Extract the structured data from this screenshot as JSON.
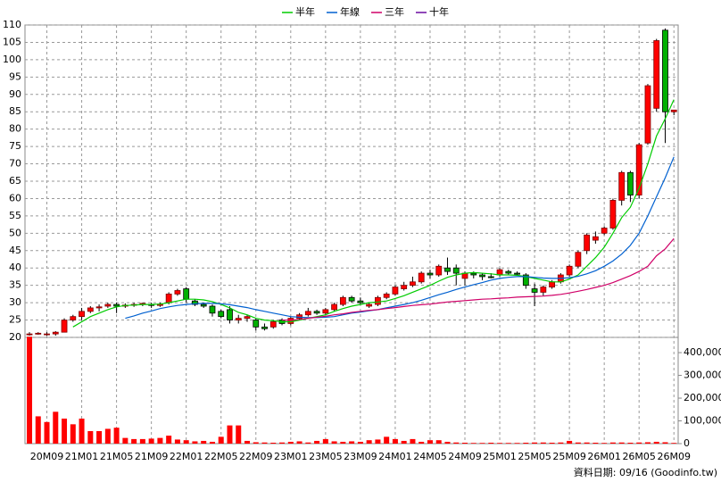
{
  "chart_data": {
    "type": "candlestick",
    "categories": [
      null,
      null,
      "20M09",
      null,
      null,
      null,
      "21M01",
      null,
      null,
      null,
      "21M05",
      null,
      null,
      null,
      "21M09",
      null,
      null,
      null,
      "22M01",
      null,
      null,
      null,
      "22M05",
      null,
      null,
      null,
      "22M09",
      null,
      null,
      null,
      "23M01",
      null,
      null,
      null,
      "23M05",
      null,
      null,
      null,
      "23M09",
      null,
      null,
      null,
      "24M01",
      null,
      null,
      null,
      "24M05",
      null,
      null,
      null,
      "24M09",
      null,
      null,
      null,
      "25M01",
      null,
      null,
      null,
      "25M05",
      null,
      null,
      null,
      "25M09",
      null,
      null,
      null,
      "26M01",
      null,
      null,
      null,
      "26M05",
      null,
      null,
      null,
      "26M09"
    ],
    "ohlc": {
      "open": [
        21,
        21,
        21,
        21,
        21.5,
        25,
        26,
        27.5,
        28.5,
        29,
        29.5,
        29,
        29.3,
        29.5,
        29.5,
        29.2,
        30,
        32.5,
        34,
        30.5,
        29.5,
        29,
        27.5,
        28,
        25,
        25.5,
        25,
        23,
        23,
        25,
        24,
        25.5,
        26.5,
        27.5,
        27,
        28,
        29.5,
        31.5,
        30.5,
        29,
        29.5,
        31.5,
        32.5,
        34,
        35,
        36,
        38.5,
        38,
        40,
        40,
        37,
        38.5,
        38,
        37.5,
        38,
        39,
        38.5,
        38,
        34,
        33,
        34.5,
        36,
        38,
        40.5,
        45,
        48,
        50,
        51.5,
        59.5,
        67.5,
        61,
        76,
        86,
        108.5,
        85
      ],
      "high": [
        21.5,
        21.5,
        21.5,
        21.8,
        25.5,
        26.5,
        28.5,
        29,
        29.5,
        30,
        30,
        29.8,
        30,
        30,
        30,
        30,
        33,
        34,
        34.5,
        31,
        30,
        29.5,
        28,
        29,
        26.5,
        26.5,
        25.5,
        24,
        25,
        25.5,
        26,
        27,
        28.5,
        28,
        28.5,
        30,
        32,
        32,
        31.5,
        30,
        32,
        33,
        35,
        36,
        37.5,
        39,
        39.5,
        41,
        43,
        41,
        39,
        39,
        38.5,
        38.5,
        40,
        39.5,
        39,
        38.5,
        35.5,
        35,
        36.5,
        38.5,
        41,
        45,
        50,
        50.5,
        52,
        60,
        68,
        68,
        76,
        93,
        106,
        109,
        85.5
      ],
      "low": [
        20.5,
        20.8,
        20.5,
        20.5,
        21.5,
        24.5,
        25,
        27,
        27.5,
        28.5,
        27,
        28.5,
        28.8,
        29,
        28.5,
        28.8,
        29.5,
        32,
        30,
        29,
        28.5,
        26,
        25.5,
        24,
        24,
        24.5,
        22,
        22,
        22.5,
        23.5,
        23.5,
        25,
        26,
        26.5,
        26.5,
        27.5,
        29,
        30,
        29.5,
        28.5,
        29,
        31,
        32,
        33.5,
        34.5,
        35.5,
        37,
        37.5,
        38,
        35,
        35,
        37,
        36.5,
        37,
        37.5,
        38,
        38,
        34,
        29,
        32,
        34,
        35.5,
        37.5,
        40,
        44,
        47,
        49.5,
        51,
        58,
        59,
        60,
        75.5,
        85,
        76,
        84
      ],
      "close": [
        21,
        21.2,
        21,
        21.5,
        25,
        26,
        27.5,
        28.5,
        28.8,
        29.5,
        29,
        29.3,
        29.5,
        29.8,
        29.2,
        29.6,
        32.5,
        33.5,
        31,
        29.5,
        29,
        27,
        26,
        25,
        25.5,
        26,
        23,
        22.5,
        24.5,
        24,
        25.5,
        26.5,
        27.5,
        27,
        28,
        29.5,
        31.5,
        30.5,
        30,
        29.5,
        31.5,
        32.5,
        34.5,
        35,
        36,
        38.5,
        38,
        40.5,
        39,
        38.5,
        38.5,
        38,
        37.5,
        37.2,
        39.5,
        38.5,
        38.2,
        35,
        33,
        34.5,
        36,
        38,
        40.5,
        44.5,
        49.5,
        49,
        51.5,
        59.5,
        67.5,
        61,
        75.5,
        92.5,
        105.5,
        85,
        85.5
      ]
    },
    "up_color": "#ff0000",
    "down_color": "#00b000",
    "series": [
      {
        "name": "半年",
        "color": "#00cc00",
        "values": [
          null,
          null,
          null,
          null,
          null,
          23,
          24.5,
          26,
          27,
          28,
          28.8,
          29.2,
          29.3,
          29.5,
          29.5,
          29.6,
          30,
          30.5,
          31,
          31,
          30.8,
          30.3,
          29.5,
          28.5,
          27.2,
          26.5,
          25.5,
          25,
          24.8,
          24.5,
          24.5,
          25,
          25.5,
          26,
          26.5,
          27.5,
          28.3,
          29,
          29.5,
          30,
          30.2,
          30.5,
          31.2,
          32,
          33,
          34,
          35,
          36.2,
          37.3,
          38,
          38.5,
          38.7,
          38.5,
          38.3,
          38,
          38,
          37.9,
          37.5,
          37,
          36.5,
          36,
          36,
          36.8,
          38,
          40.5,
          43,
          46,
          50,
          54.5,
          57.5,
          63,
          70,
          78,
          83,
          88.5
        ]
      },
      {
        "name": "年線",
        "color": "#0060d0",
        "values": [
          null,
          null,
          null,
          null,
          null,
          null,
          null,
          null,
          null,
          null,
          null,
          25.5,
          26.2,
          27,
          27.6,
          28.3,
          28.8,
          29.2,
          29.5,
          29.7,
          29.8,
          29.8,
          29.7,
          29.4,
          29,
          28.6,
          28,
          27.5,
          27,
          26.5,
          26,
          25.8,
          25.7,
          25.7,
          25.8,
          26,
          26.5,
          27,
          27.3,
          27.7,
          28,
          28.5,
          29,
          29.5,
          30,
          30.7,
          31.5,
          32.3,
          33,
          33.8,
          34.5,
          35.2,
          35.8,
          36.5,
          37,
          37.3,
          37.5,
          37.5,
          37.3,
          37.1,
          37,
          37,
          37.2,
          37.6,
          38.3,
          39.2,
          40.5,
          42,
          44,
          46.5,
          50,
          55,
          60.5,
          66,
          72
        ]
      },
      {
        "name": "三年",
        "color": "#d00068",
        "values": [
          null,
          null,
          null,
          null,
          null,
          null,
          null,
          null,
          null,
          null,
          null,
          null,
          null,
          null,
          null,
          null,
          null,
          null,
          null,
          null,
          null,
          null,
          null,
          null,
          null,
          null,
          null,
          null,
          null,
          25,
          25,
          25.2,
          25.5,
          25.8,
          26.1,
          26.5,
          26.8,
          27.2,
          27.5,
          27.8,
          28,
          28.3,
          28.6,
          28.9,
          29.2,
          29.4,
          29.6,
          29.9,
          30.2,
          30.4,
          30.6,
          30.8,
          31,
          31.1,
          31.3,
          31.4,
          31.6,
          31.7,
          31.8,
          31.9,
          32.1,
          32.4,
          32.8,
          33.3,
          33.8,
          34.4,
          35,
          35.8,
          36.8,
          37.8,
          39,
          40.5,
          43.5,
          45.5,
          48.5
        ]
      },
      {
        "name": "十年",
        "color": "#6a0aa0",
        "values": [
          null,
          null,
          null,
          null,
          null,
          null,
          null,
          null,
          null,
          null,
          null,
          null,
          null,
          null,
          null,
          null,
          null,
          null,
          null,
          null,
          null,
          null,
          null,
          null,
          null,
          null,
          null,
          null,
          null,
          null,
          null,
          null,
          null,
          null,
          null,
          null,
          null,
          null,
          null,
          null,
          null,
          null,
          null,
          null,
          null,
          null,
          null,
          null,
          null,
          null,
          null,
          null,
          null,
          null,
          null,
          null,
          null,
          null,
          null,
          null,
          null,
          null,
          null,
          null,
          null,
          null,
          null,
          null,
          null,
          null,
          null,
          null,
          null,
          null,
          null
        ]
      }
    ],
    "volume": {
      "color": "#ff0000",
      "axis": "y2",
      "values": [
        470000,
        120000,
        95000,
        140000,
        110000,
        85000,
        110000,
        55000,
        55000,
        65000,
        70000,
        25000,
        20000,
        20000,
        22000,
        25000,
        35000,
        18000,
        15000,
        10000,
        12000,
        8000,
        30000,
        80000,
        80000,
        12000,
        6000,
        5000,
        4000,
        5000,
        8000,
        10000,
        5000,
        12000,
        20000,
        10000,
        8000,
        10000,
        8000,
        15000,
        18000,
        30000,
        20000,
        12000,
        20000,
        8000,
        15000,
        15000,
        8000,
        5000,
        4000,
        3000,
        3000,
        4000,
        3000,
        3000,
        3000,
        4000,
        5000,
        5000,
        4000,
        5000,
        12000,
        5000,
        5000,
        4000,
        3000,
        5000,
        5000,
        4000,
        5000,
        6000,
        8000,
        6000,
        3000
      ]
    },
    "ylim": [
      20,
      110
    ],
    "yticks": [
      20,
      25,
      30,
      35,
      40,
      45,
      50,
      55,
      60,
      65,
      70,
      75,
      80,
      85,
      90,
      95,
      100,
      105,
      110
    ],
    "y2lim": [
      0,
      467000
    ],
    "y2ticks": [
      0,
      {
        "value": 100000,
        "label": "100,000"
      },
      {
        "value": 200000,
        "label": "200,000"
      },
      {
        "value": 300000,
        "label": "300,000"
      },
      {
        "value": 400000,
        "label": "400,000"
      }
    ],
    "grid": true,
    "legend": "top",
    "source": "資料日期: 09/16 (Goodinfo.tw)"
  }
}
